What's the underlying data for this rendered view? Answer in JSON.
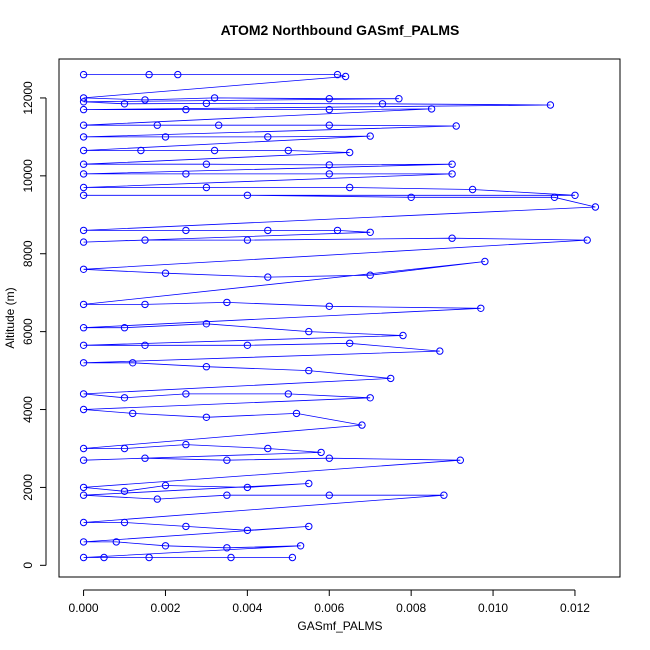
{
  "chart_data": {
    "type": "scatter",
    "title": "ATOM2 Northbound GASmf_PALMS",
    "xlabel": "GASmf_PALMS",
    "ylabel": "Altitude (m)",
    "xlim": [
      -0.0006,
      0.0131
    ],
    "ylim": [
      -300,
      13000
    ],
    "xticks": [
      0.0,
      0.002,
      0.004,
      0.006,
      0.008,
      0.01,
      0.012
    ],
    "xtick_labels": [
      "0.000",
      "0.002",
      "0.004",
      "0.006",
      "0.008",
      "0.010",
      "0.012"
    ],
    "yticks": [
      0,
      2000,
      4000,
      6000,
      8000,
      10000,
      12000
    ],
    "ytick_labels": [
      "0",
      "2000",
      "4000",
      "6000",
      "8000",
      "10000",
      "12000"
    ],
    "grid": false,
    "legend": "none",
    "color": "#0000ff",
    "series": [
      {
        "points": [
          [
            0.0,
            12600
          ],
          [
            0.0016,
            12600
          ],
          [
            0.0023,
            12600
          ],
          [
            0.0062,
            12600
          ],
          [
            0.0064,
            12550
          ],
          [
            0.0,
            12000
          ],
          [
            0.0015,
            11950
          ],
          [
            0.0032,
            12000
          ],
          [
            0.006,
            11980
          ],
          [
            0.0077,
            11980
          ],
          [
            0.0,
            11900
          ],
          [
            0.001,
            11850
          ],
          [
            0.003,
            11860
          ],
          [
            0.0073,
            11850
          ],
          [
            0.0114,
            11820
          ],
          [
            0.0,
            11700
          ],
          [
            0.0025,
            11700
          ],
          [
            0.006,
            11700
          ],
          [
            0.0085,
            11720
          ],
          [
            0.0,
            11300
          ],
          [
            0.0018,
            11300
          ],
          [
            0.0033,
            11300
          ],
          [
            0.006,
            11300
          ],
          [
            0.0091,
            11280
          ],
          [
            0.0,
            11000
          ],
          [
            0.002,
            11000
          ],
          [
            0.0045,
            11000
          ],
          [
            0.007,
            11020
          ],
          [
            0.0,
            10650
          ],
          [
            0.0014,
            10650
          ],
          [
            0.0032,
            10650
          ],
          [
            0.005,
            10650
          ],
          [
            0.0065,
            10600
          ],
          [
            0.0,
            10300
          ],
          [
            0.003,
            10300
          ],
          [
            0.006,
            10280
          ],
          [
            0.009,
            10300
          ],
          [
            0.0,
            10050
          ],
          [
            0.0025,
            10050
          ],
          [
            0.006,
            10050
          ],
          [
            0.009,
            10050
          ],
          [
            0.0,
            9700
          ],
          [
            0.003,
            9700
          ],
          [
            0.0065,
            9700
          ],
          [
            0.0095,
            9650
          ],
          [
            0.012,
            9500
          ],
          [
            0.0,
            9500
          ],
          [
            0.004,
            9500
          ],
          [
            0.008,
            9450
          ],
          [
            0.0115,
            9450
          ],
          [
            0.0125,
            9200
          ],
          [
            0.0,
            8600
          ],
          [
            0.0025,
            8600
          ],
          [
            0.0045,
            8600
          ],
          [
            0.0062,
            8600
          ],
          [
            0.007,
            8550
          ],
          [
            0.0,
            8300
          ],
          [
            0.0015,
            8350
          ],
          [
            0.004,
            8350
          ],
          [
            0.009,
            8400
          ],
          [
            0.0123,
            8350
          ],
          [
            0.0,
            7600
          ],
          [
            0.002,
            7500
          ],
          [
            0.0045,
            7400
          ],
          [
            0.007,
            7450
          ],
          [
            0.0098,
            7800
          ],
          [
            0.0,
            6700
          ],
          [
            0.0015,
            6700
          ],
          [
            0.0035,
            6750
          ],
          [
            0.006,
            6650
          ],
          [
            0.0097,
            6600
          ],
          [
            0.0,
            6100
          ],
          [
            0.001,
            6100
          ],
          [
            0.003,
            6200
          ],
          [
            0.0055,
            6000
          ],
          [
            0.0078,
            5900
          ],
          [
            0.0,
            5650
          ],
          [
            0.0015,
            5650
          ],
          [
            0.004,
            5650
          ],
          [
            0.0065,
            5700
          ],
          [
            0.0087,
            5500
          ],
          [
            0.0,
            5200
          ],
          [
            0.0012,
            5200
          ],
          [
            0.003,
            5100
          ],
          [
            0.0055,
            5000
          ],
          [
            0.0075,
            4800
          ],
          [
            0.0,
            4400
          ],
          [
            0.001,
            4300
          ],
          [
            0.0025,
            4400
          ],
          [
            0.005,
            4400
          ],
          [
            0.007,
            4300
          ],
          [
            0.0,
            4000
          ],
          [
            0.0012,
            3900
          ],
          [
            0.003,
            3800
          ],
          [
            0.0052,
            3900
          ],
          [
            0.0068,
            3600
          ],
          [
            0.0,
            3000
          ],
          [
            0.001,
            3000
          ],
          [
            0.0025,
            3100
          ],
          [
            0.0045,
            3000
          ],
          [
            0.0058,
            2900
          ],
          [
            0.0,
            2700
          ],
          [
            0.0015,
            2750
          ],
          [
            0.0035,
            2700
          ],
          [
            0.006,
            2750
          ],
          [
            0.0092,
            2700
          ],
          [
            0.0,
            2000
          ],
          [
            0.001,
            1900
          ],
          [
            0.002,
            2050
          ],
          [
            0.004,
            2000
          ],
          [
            0.0055,
            2100
          ],
          [
            0.0,
            1800
          ],
          [
            0.0018,
            1700
          ],
          [
            0.0035,
            1800
          ],
          [
            0.006,
            1800
          ],
          [
            0.0088,
            1800
          ],
          [
            0.0,
            1100
          ],
          [
            0.001,
            1100
          ],
          [
            0.0025,
            1000
          ],
          [
            0.004,
            900
          ],
          [
            0.0055,
            1000
          ],
          [
            0.0,
            600
          ],
          [
            0.0008,
            600
          ],
          [
            0.002,
            500
          ],
          [
            0.0035,
            450
          ],
          [
            0.0053,
            500
          ],
          [
            0.0,
            200
          ],
          [
            0.0005,
            200
          ],
          [
            0.0016,
            200
          ],
          [
            0.0036,
            200
          ],
          [
            0.0051,
            200
          ]
        ]
      }
    ]
  }
}
